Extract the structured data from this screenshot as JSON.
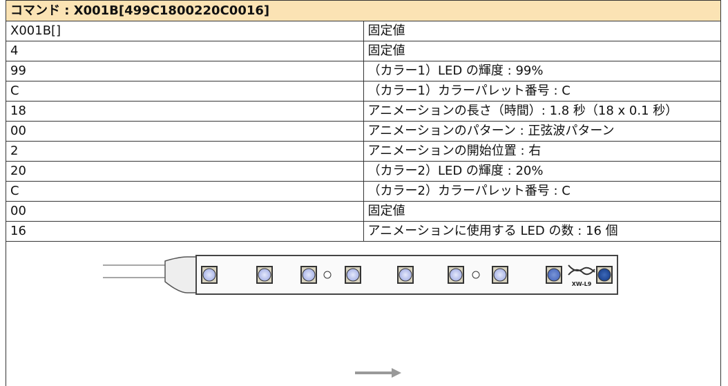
{
  "header": {
    "title": "コマンド : X001B[499C1800220C0016]"
  },
  "table": {
    "rows": [
      [
        "X001B[]",
        "固定値"
      ],
      [
        "4",
        "固定値"
      ],
      [
        "99",
        "（カラー1）LED の輝度 : 99%"
      ],
      [
        "C",
        "（カラー1）カラーパレット番号 : C"
      ],
      [
        "18",
        "アニメーションの長さ（時間）: 1.8 秒（18 x 0.1 秒）"
      ],
      [
        "00",
        "アニメーションのパターン : 正弦波パターン"
      ],
      [
        "2",
        "アニメーションの開始位置 : 右"
      ],
      [
        "20",
        "（カラー2）LED の輝度 : 20%"
      ],
      [
        "C",
        "（カラー2）カラーパレット番号 : C"
      ],
      [
        "00",
        "固定値"
      ],
      [
        "16",
        "アニメーションに使用する LED の数 : 16 個"
      ]
    ]
  },
  "illustration": {
    "label": "XW-L9"
  }
}
